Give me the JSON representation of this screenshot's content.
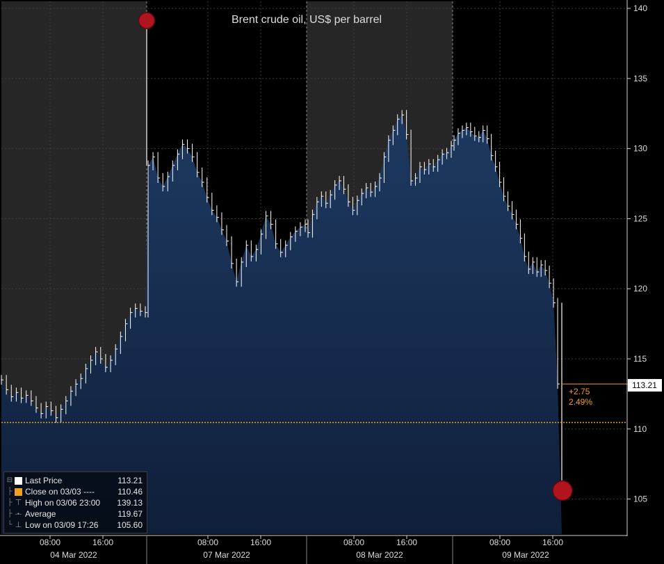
{
  "chart_data": {
    "type": "bar",
    "style": "OHLC high-low bars with filled area under price",
    "title": "Brent crude oil, US$ per barrel",
    "xlabel": "",
    "ylabel": "",
    "ylim": [
      102.5,
      140.5
    ],
    "y_ticks": [
      105,
      110,
      115,
      120,
      125,
      130,
      135,
      140
    ],
    "x_tick_labels": [
      "08:00",
      "16:00",
      "08:00",
      "16:00",
      "08:00",
      "16:00",
      "08:00",
      "16:00"
    ],
    "date_labels": [
      "04 Mar 2022",
      "07 Mar 2022",
      "08 Mar 2022",
      "09 Mar 2022"
    ],
    "grid": true,
    "legend_position": "bottom-left",
    "series": [
      {
        "name": "Last Price",
        "color": "#ffffff",
        "values": [
          113.5,
          112.8,
          112.3,
          112.6,
          112.2,
          112.4,
          112.0,
          111.5,
          111.1,
          111.6,
          111.3,
          110.8,
          111.4,
          112.0,
          112.7,
          113.2,
          113.6,
          114.3,
          114.9,
          115.5,
          115.0,
          114.4,
          114.9,
          115.7,
          116.6,
          117.5,
          118.3,
          118.6,
          118.4,
          118.3,
          128.8,
          129.4,
          127.9,
          127.3,
          128.0,
          128.8,
          129.6,
          130.3,
          130.0,
          129.4,
          128.3,
          127.6,
          126.5,
          125.6,
          125.1,
          124.2,
          123.4,
          121.8,
          120.5,
          121.9,
          123.1,
          122.3,
          122.8,
          123.9,
          125.2,
          124.6,
          123.2,
          122.6,
          123.1,
          123.7,
          124.1,
          124.4,
          124.6,
          124.0,
          125.3,
          126.2,
          126.6,
          126.1,
          126.7,
          127.4,
          127.7,
          127.1,
          126.2,
          125.6,
          126.3,
          126.8,
          127.2,
          126.9,
          127.3,
          127.9,
          129.4,
          130.6,
          131.3,
          132.1,
          132.4,
          131.0,
          127.7,
          127.9,
          128.7,
          128.5,
          128.9,
          128.7,
          129.2,
          129.6,
          129.7,
          130.2,
          130.6,
          131.1,
          131.3,
          131.5,
          131.2,
          130.9,
          130.8,
          131.3,
          130.7,
          129.5,
          128.7,
          127.6,
          126.6,
          125.9,
          125.3,
          124.6,
          123.6,
          122.3,
          121.4,
          121.9,
          121.2,
          121.7,
          121.3,
          120.4,
          119.0,
          113.21
        ],
        "visible_spikes": [
          {
            "position": "07 Mar open",
            "value": 139.13
          },
          {
            "position": "09 Mar 17:26",
            "value": 105.6
          }
        ]
      },
      {
        "name": "Close on 03/03",
        "color": "#f0a020",
        "values": [
          110.46
        ]
      }
    ],
    "last_value_marker": {
      "value": "113.21",
      "change": "+2.75",
      "change_pct": "2.49%"
    },
    "annotations": [
      "High on 03/06 23:00 139.13",
      "Low on 03/09 17:26 105.60"
    ]
  },
  "legend": {
    "rows": [
      {
        "label": "Last Price",
        "value": "113.21",
        "swatch_color": "#ffffff"
      },
      {
        "label": "Close on 03/03 ----",
        "value": "110.46",
        "swatch_color": "#f0a020"
      },
      {
        "label": "High on 03/06 23:00",
        "value": "139.13",
        "glyph": "⊤"
      },
      {
        "label": "Average",
        "value": "119.67",
        "glyph": "-•-"
      },
      {
        "label": "Low on 03/09 17:26",
        "value": "105.60",
        "glyph": "⊥"
      }
    ]
  },
  "colors": {
    "background": "#000000",
    "shaded_session": "#262626",
    "area_fill": "#172d4f",
    "price_line": "#ffffff",
    "reference_line": "#f0a020",
    "marker": "#b0141e",
    "grid": "#3c3c3c"
  }
}
